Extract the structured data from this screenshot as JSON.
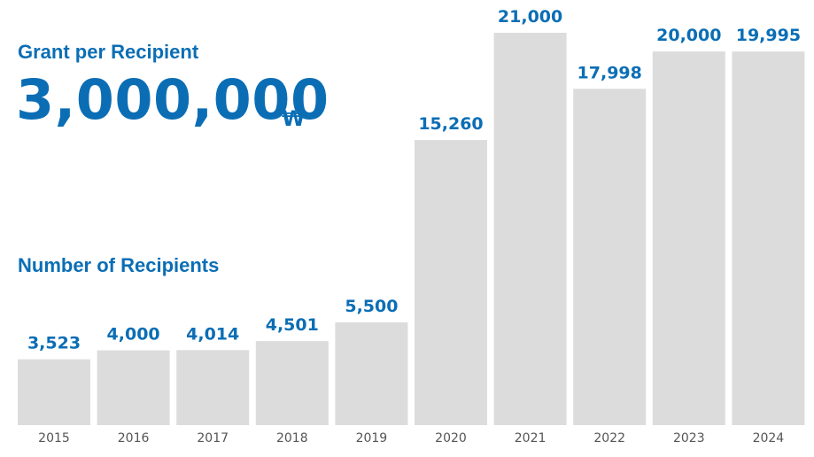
{
  "grant": {
    "label": "Grant per Recipient",
    "value": "3,000,000",
    "currency": "₩"
  },
  "chart_data": {
    "type": "bar",
    "title": "Number of Recipients",
    "xlabel": "",
    "ylabel": "",
    "categories": [
      "2015",
      "2016",
      "2017",
      "2018",
      "2019",
      "2020",
      "2021",
      "2022",
      "2023",
      "2024"
    ],
    "values": [
      3523,
      4000,
      4014,
      4501,
      5500,
      15260,
      21000,
      17998,
      20000,
      19995
    ],
    "value_labels": [
      "3,523",
      "4,000",
      "4,014",
      "4,501",
      "5,500",
      "15,260",
      "21,000",
      "17,998",
      "20,000",
      "19,995"
    ],
    "ylim": [
      0,
      21000
    ],
    "grid": false,
    "legend": "none",
    "colors": {
      "bar": "#dcdcdc",
      "value_label": "#0b6eb5",
      "tick_label": "#555555",
      "heading": "#0b6eb5"
    }
  }
}
